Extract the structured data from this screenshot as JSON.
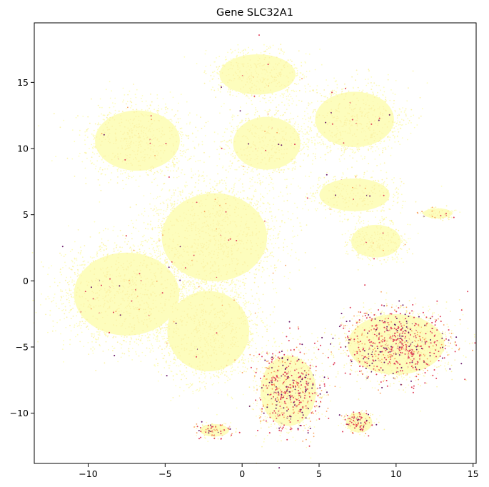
{
  "chart_data": {
    "type": "scatter",
    "title": "Gene SLC32A1",
    "xlabel": "",
    "ylabel": "",
    "xlim": [
      -13.5,
      15.2
    ],
    "ylim": [
      -13.8,
      19.5
    ],
    "x_ticks": [
      -10,
      -5,
      0,
      5,
      10,
      15
    ],
    "y_ticks": [
      -10,
      -5,
      0,
      5,
      10,
      15
    ],
    "grid": false,
    "colormap": "Spectral_r (light yellow = low, red/purple = high expression)",
    "colors": {
      "base": "#fdfdbd",
      "low": "#fbf3a8",
      "mid": "#f8a05a",
      "high": "#e0405a",
      "top": "#6a1a6a"
    },
    "clusters": [
      {
        "region": "top-left lobe",
        "center": [
          -6.8,
          10.6
        ],
        "spread": [
          2.9,
          2.4
        ],
        "expression": "low"
      },
      {
        "region": "upper-middle lobe",
        "center": [
          1.6,
          10.4
        ],
        "spread": [
          2.3,
          2.1
        ],
        "expression": "low"
      },
      {
        "region": "top cluster",
        "center": [
          1.0,
          15.6
        ],
        "spread": [
          2.6,
          1.6
        ],
        "expression": "low"
      },
      {
        "region": "upper-right lobe",
        "center": [
          7.3,
          12.2
        ],
        "spread": [
          2.7,
          2.2
        ],
        "expression": "low"
      },
      {
        "region": "central mass",
        "center": [
          -1.8,
          3.3
        ],
        "spread": [
          3.6,
          3.5
        ],
        "expression": "low"
      },
      {
        "region": "left lobe",
        "center": [
          -7.5,
          -1.0
        ],
        "spread": [
          3.6,
          3.3
        ],
        "expression": "low"
      },
      {
        "region": "lower-middle mass",
        "center": [
          -2.2,
          -3.8
        ],
        "spread": [
          2.8,
          3.2
        ],
        "expression": "low"
      },
      {
        "region": "right mid cluster",
        "center": [
          7.3,
          6.5
        ],
        "spread": [
          2.4,
          1.3
        ],
        "expression": "low"
      },
      {
        "region": "right small cluster",
        "center": [
          8.7,
          3.0
        ],
        "spread": [
          1.7,
          1.3
        ],
        "expression": "low"
      },
      {
        "region": "tail cluster",
        "center": [
          12.7,
          5.1
        ],
        "spread": [
          1.0,
          0.4
        ],
        "expression": "medium"
      },
      {
        "region": "bottom-center cluster",
        "center": [
          3.0,
          -8.3
        ],
        "spread": [
          1.9,
          2.8
        ],
        "expression": "high"
      },
      {
        "region": "bottom-right cluster",
        "center": [
          10.0,
          -4.8
        ],
        "spread": [
          3.3,
          2.4
        ],
        "expression": "high"
      },
      {
        "region": "bottom small cluster",
        "center": [
          7.6,
          -10.7
        ],
        "spread": [
          0.9,
          0.8
        ],
        "expression": "high"
      },
      {
        "region": "bottom-left small cluster",
        "center": [
          -1.8,
          -11.3
        ],
        "spread": [
          1.0,
          0.5
        ],
        "expression": "high"
      }
    ]
  }
}
